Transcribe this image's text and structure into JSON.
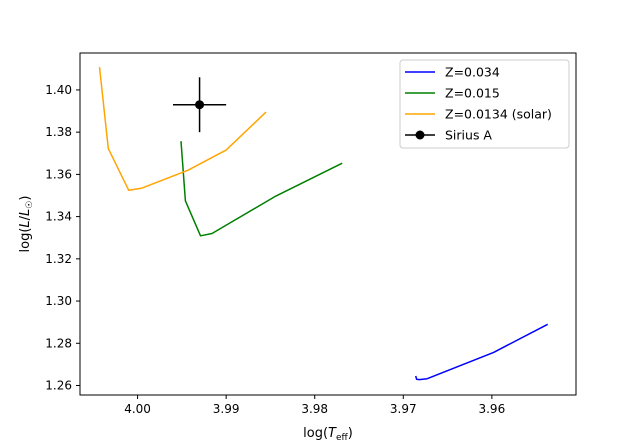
{
  "chart_data": {
    "type": "line",
    "xlabel": "log(T_eff)",
    "ylabel": "log(L/L☉)",
    "xlim": [
      4.0065,
      3.9505
    ],
    "ylim": [
      1.2555,
      1.4175
    ],
    "x_inverted": true,
    "xticks": [
      4.0,
      3.99,
      3.98,
      3.97,
      3.96
    ],
    "xtick_labels": [
      "4.00",
      "3.99",
      "3.98",
      "3.97",
      "3.96"
    ],
    "yticks": [
      1.26,
      1.28,
      1.3,
      1.32,
      1.34,
      1.36,
      1.38,
      1.4
    ],
    "ytick_labels": [
      "1.26",
      "1.28",
      "1.30",
      "1.32",
      "1.34",
      "1.36",
      "1.38",
      "1.40"
    ],
    "legend_position": "top-right",
    "series": [
      {
        "name": "Z=0.034",
        "color": "#0000ff",
        "x": [
          3.9686,
          3.9685,
          3.9682,
          3.9673,
          3.9598,
          3.9537
        ],
        "y": [
          1.2645,
          1.263,
          1.2628,
          1.2632,
          1.2757,
          1.289
        ]
      },
      {
        "name": "Z=0.015",
        "color": "#008000",
        "x": [
          3.9951,
          3.9946,
          3.9929,
          3.9916,
          3.9845,
          3.9769
        ],
        "y": [
          1.3757,
          1.3475,
          1.3309,
          1.332,
          1.3495,
          1.3653
        ]
      },
      {
        "name": "Z=0.0134 (solar)",
        "color": "#ffa500",
        "x": [
          4.0043,
          4.0033,
          4.001,
          3.9995,
          3.9943,
          3.99,
          3.9855
        ],
        "y": [
          1.4108,
          1.3722,
          1.3525,
          1.3535,
          1.362,
          1.3715,
          1.3895
        ]
      }
    ],
    "point": {
      "name": "Sirius A",
      "color": "#000000",
      "x": 3.993,
      "y": 1.393,
      "x_err": 0.003,
      "y_err": 0.013
    }
  }
}
